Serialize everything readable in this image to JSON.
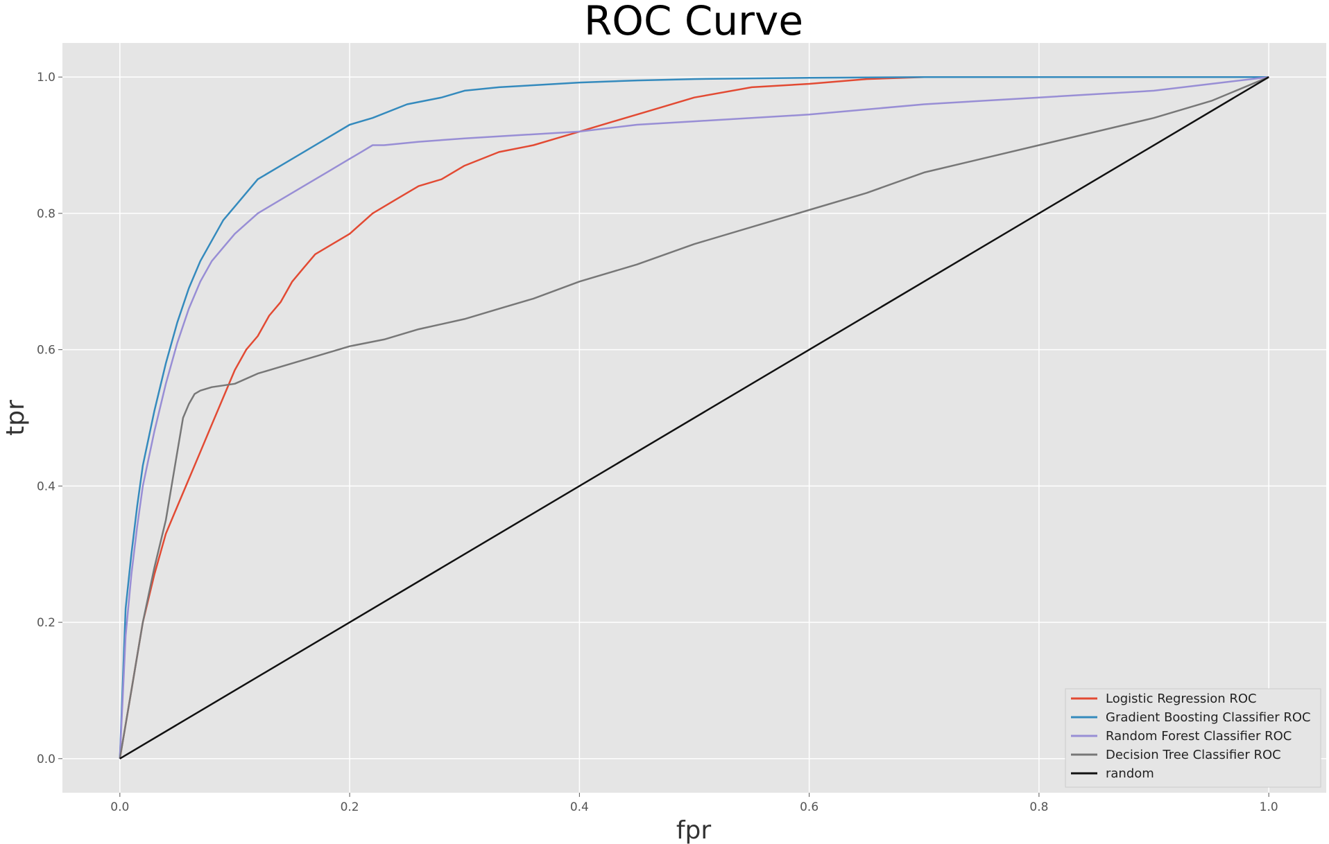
{
  "chart_data": {
    "type": "line",
    "title": "ROC Curve",
    "xlabel": "fpr",
    "ylabel": "tpr",
    "xlim": [
      -0.05,
      1.05
    ],
    "ylim": [
      -0.05,
      1.05
    ],
    "xticks": [
      "0.0",
      "0.2",
      "0.4",
      "0.6",
      "0.8",
      "1.0"
    ],
    "yticks": [
      "0.0",
      "0.2",
      "0.4",
      "0.6",
      "0.8",
      "1.0"
    ],
    "grid": true,
    "background": "#E5E5E5",
    "legend_position": "lower-right",
    "series": [
      {
        "name": "Logistic Regression ROC",
        "color": "#E24A33",
        "x": [
          0,
          0.01,
          0.02,
          0.03,
          0.04,
          0.05,
          0.06,
          0.07,
          0.08,
          0.09,
          0.1,
          0.11,
          0.12,
          0.13,
          0.14,
          0.15,
          0.16,
          0.17,
          0.18,
          0.2,
          0.22,
          0.24,
          0.26,
          0.28,
          0.3,
          0.33,
          0.36,
          0.38,
          0.4,
          0.43,
          0.46,
          0.5,
          0.55,
          0.6,
          0.65,
          0.7,
          0.8,
          0.9,
          1.0
        ],
        "y": [
          0,
          0.1,
          0.2,
          0.27,
          0.33,
          0.37,
          0.41,
          0.45,
          0.49,
          0.53,
          0.57,
          0.6,
          0.62,
          0.65,
          0.67,
          0.7,
          0.72,
          0.74,
          0.75,
          0.77,
          0.8,
          0.82,
          0.84,
          0.85,
          0.87,
          0.89,
          0.9,
          0.91,
          0.92,
          0.935,
          0.95,
          0.97,
          0.985,
          0.99,
          0.997,
          1.0,
          1.0,
          1.0,
          1.0
        ]
      },
      {
        "name": "Gradient Boosting Classifier ROC",
        "color": "#348ABD",
        "x": [
          0,
          0.005,
          0.01,
          0.015,
          0.02,
          0.03,
          0.04,
          0.05,
          0.06,
          0.07,
          0.08,
          0.09,
          0.1,
          0.12,
          0.14,
          0.16,
          0.18,
          0.2,
          0.22,
          0.25,
          0.28,
          0.3,
          0.33,
          0.36,
          0.4,
          0.45,
          0.5,
          0.6,
          0.7,
          0.8,
          1.0
        ],
        "y": [
          0,
          0.22,
          0.3,
          0.37,
          0.43,
          0.51,
          0.58,
          0.64,
          0.69,
          0.73,
          0.76,
          0.79,
          0.81,
          0.85,
          0.87,
          0.89,
          0.91,
          0.93,
          0.94,
          0.96,
          0.97,
          0.98,
          0.985,
          0.988,
          0.992,
          0.995,
          0.997,
          0.999,
          1.0,
          1.0,
          1.0
        ]
      },
      {
        "name": "Random Forest Classifier ROC",
        "color": "#988ED5",
        "x": [
          0,
          0.005,
          0.01,
          0.015,
          0.02,
          0.03,
          0.04,
          0.05,
          0.06,
          0.07,
          0.08,
          0.09,
          0.1,
          0.12,
          0.14,
          0.16,
          0.18,
          0.2,
          0.21,
          0.22,
          0.23,
          0.26,
          0.3,
          0.35,
          0.4,
          0.45,
          0.5,
          0.6,
          0.7,
          0.8,
          0.9,
          0.95,
          1.0
        ],
        "y": [
          0,
          0.18,
          0.27,
          0.34,
          0.4,
          0.48,
          0.55,
          0.61,
          0.66,
          0.7,
          0.73,
          0.75,
          0.77,
          0.8,
          0.82,
          0.84,
          0.86,
          0.88,
          0.89,
          0.9,
          0.9,
          0.905,
          0.91,
          0.915,
          0.92,
          0.93,
          0.935,
          0.945,
          0.96,
          0.97,
          0.98,
          0.99,
          1.0
        ]
      },
      {
        "name": "Decision Tree Classifier ROC",
        "color": "#777777",
        "x": [
          0,
          0.01,
          0.02,
          0.03,
          0.04,
          0.05,
          0.055,
          0.06,
          0.065,
          0.07,
          0.08,
          0.1,
          0.12,
          0.15,
          0.18,
          0.2,
          0.23,
          0.26,
          0.3,
          0.33,
          0.36,
          0.4,
          0.45,
          0.5,
          0.55,
          0.6,
          0.65,
          0.7,
          0.75,
          0.8,
          0.85,
          0.9,
          0.95,
          1.0
        ],
        "y": [
          0,
          0.1,
          0.2,
          0.28,
          0.35,
          0.45,
          0.5,
          0.52,
          0.535,
          0.54,
          0.545,
          0.55,
          0.565,
          0.58,
          0.595,
          0.605,
          0.615,
          0.63,
          0.645,
          0.66,
          0.675,
          0.7,
          0.725,
          0.755,
          0.78,
          0.805,
          0.83,
          0.86,
          0.88,
          0.9,
          0.92,
          0.94,
          0.965,
          1.0
        ]
      },
      {
        "name": "random",
        "color": "#111111",
        "x": [
          0,
          1
        ],
        "y": [
          0,
          1
        ]
      }
    ]
  }
}
